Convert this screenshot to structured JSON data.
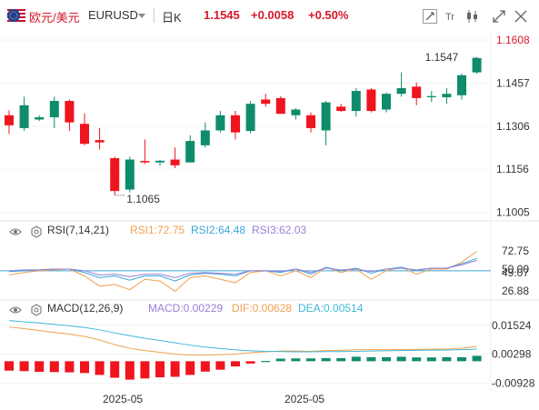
{
  "header": {
    "pair_name": "欧元/美元",
    "pair_code": "EURUSD",
    "period": "日K",
    "price": "1.1545",
    "change": "+0.0058",
    "change_pct": "+0.50%"
  },
  "toolbar": {
    "icons": [
      "crosshair-icon",
      "text-icon",
      "candle-type-icon",
      "collapse-icon",
      "expand-icon"
    ]
  },
  "colors": {
    "up": "#0e8c6b",
    "down": "#f0141e",
    "accent_red": "#d6192c",
    "rsi1": "#f0a050",
    "rsi2": "#3aa6d8",
    "rsi3": "#9a7fd8",
    "macd": "#9a7fd8",
    "dif": "#f0a050",
    "dea": "#3fb8d8"
  },
  "chart_data": [
    {
      "type": "candlestick",
      "y_ticks": [
        "1.1608",
        "1.1457",
        "1.1306",
        "1.1156",
        "1.1005"
      ],
      "ylim": [
        1.0985,
        1.164
      ],
      "annotations": {
        "high": "1.1547",
        "low": "1.1065"
      },
      "candles": [
        {
          "o": 1.1345,
          "h": 1.1362,
          "l": 1.128,
          "c": 1.131
        },
        {
          "o": 1.13,
          "h": 1.141,
          "l": 1.129,
          "c": 1.138
        },
        {
          "o": 1.133,
          "h": 1.1345,
          "l": 1.1325,
          "c": 1.1338
        },
        {
          "o": 1.1338,
          "h": 1.141,
          "l": 1.13,
          "c": 1.1395
        },
        {
          "o": 1.1395,
          "h": 1.14,
          "l": 1.129,
          "c": 1.132
        },
        {
          "o": 1.1315,
          "h": 1.1352,
          "l": 1.124,
          "c": 1.1245
        },
        {
          "o": 1.1258,
          "h": 1.13,
          "l": 1.1225,
          "c": 1.125
        },
        {
          "o": 1.1195,
          "h": 1.12,
          "l": 1.1065,
          "c": 1.108
        },
        {
          "o": 1.1085,
          "h": 1.12,
          "l": 1.1075,
          "c": 1.119
        },
        {
          "o": 1.1185,
          "h": 1.126,
          "l": 1.1175,
          "c": 1.118
        },
        {
          "o": 1.118,
          "h": 1.1188,
          "l": 1.1168,
          "c": 1.1186
        },
        {
          "o": 1.119,
          "h": 1.1232,
          "l": 1.116,
          "c": 1.117
        },
        {
          "o": 1.118,
          "h": 1.1275,
          "l": 1.118,
          "c": 1.1255
        },
        {
          "o": 1.124,
          "h": 1.132,
          "l": 1.1232,
          "c": 1.1292
        },
        {
          "o": 1.1292,
          "h": 1.136,
          "l": 1.1285,
          "c": 1.1345
        },
        {
          "o": 1.1345,
          "h": 1.136,
          "l": 1.126,
          "c": 1.1285
        },
        {
          "o": 1.129,
          "h": 1.1395,
          "l": 1.1282,
          "c": 1.1385
        },
        {
          "o": 1.14,
          "h": 1.142,
          "l": 1.1375,
          "c": 1.1385
        },
        {
          "o": 1.1405,
          "h": 1.1412,
          "l": 1.135,
          "c": 1.135
        },
        {
          "o": 1.1345,
          "h": 1.137,
          "l": 1.133,
          "c": 1.1365
        },
        {
          "o": 1.1345,
          "h": 1.1355,
          "l": 1.1285,
          "c": 1.13
        },
        {
          "o": 1.1292,
          "h": 1.1395,
          "l": 1.124,
          "c": 1.139
        },
        {
          "o": 1.1375,
          "h": 1.1385,
          "l": 1.1357,
          "c": 1.136
        },
        {
          "o": 1.136,
          "h": 1.144,
          "l": 1.134,
          "c": 1.143
        },
        {
          "o": 1.1435,
          "h": 1.144,
          "l": 1.1355,
          "c": 1.136
        },
        {
          "o": 1.1365,
          "h": 1.1425,
          "l": 1.1355,
          "c": 1.142
        },
        {
          "o": 1.142,
          "h": 1.1495,
          "l": 1.141,
          "c": 1.144
        },
        {
          "o": 1.1445,
          "h": 1.146,
          "l": 1.138,
          "c": 1.1405
        },
        {
          "o": 1.1408,
          "h": 1.143,
          "l": 1.1392,
          "c": 1.1412
        },
        {
          "o": 1.1408,
          "h": 1.144,
          "l": 1.1385,
          "c": 1.142
        },
        {
          "o": 1.1415,
          "h": 1.149,
          "l": 1.14,
          "c": 1.1485
        },
        {
          "o": 1.1495,
          "h": 1.1547,
          "l": 1.149,
          "c": 1.1545
        }
      ]
    },
    {
      "type": "line",
      "label": "RSI(7,14,21)",
      "legend": [
        "RSI1:72.75",
        "RSI2:64.48",
        "RSI3:62.03"
      ],
      "y_ticks": [
        "72.75",
        "50.00",
        "49.07",
        "26.88"
      ],
      "ylim": [
        18,
        88
      ],
      "reference_levels": [
        50.0
      ],
      "series": [
        {
          "name": "RSI1",
          "values": [
            45,
            48,
            50,
            51,
            52,
            44,
            32,
            34,
            28,
            40,
            38,
            26,
            42,
            44,
            40,
            36,
            48,
            50,
            44,
            50,
            42,
            54,
            48,
            52,
            40,
            50,
            54,
            46,
            52,
            52,
            60,
            72.75
          ]
        },
        {
          "name": "RSI2",
          "values": [
            49,
            50,
            51,
            52,
            52,
            48,
            42,
            44,
            39,
            44,
            44,
            38,
            45,
            47,
            46,
            44,
            50,
            50,
            48,
            52,
            46,
            54,
            50,
            53,
            47,
            52,
            54,
            50,
            53,
            53,
            58,
            64.48
          ]
        },
        {
          "name": "RSI3",
          "values": [
            50,
            51,
            51,
            52,
            52,
            50,
            45,
            46,
            43,
            46,
            46,
            42,
            47,
            48,
            47,
            46,
            50,
            50,
            49,
            52,
            48,
            53,
            51,
            52,
            49,
            52,
            53,
            51,
            53,
            53,
            57,
            62.03
          ]
        }
      ]
    },
    {
      "type": "bar+line",
      "label": "MACD(12,26,9)",
      "legend": [
        "MACD:0.00229",
        "DIF:0.00628",
        "DEA:0.00514"
      ],
      "y_ticks": [
        "0.01524",
        "0.00298",
        "-0.00928"
      ],
      "ylim": [
        -0.0118,
        0.019
      ],
      "x_ticks": [
        "2025-05",
        "2025-05"
      ],
      "histogram": [
        -0.004,
        -0.0042,
        -0.0045,
        -0.0046,
        -0.0047,
        -0.005,
        -0.0058,
        -0.007,
        -0.0078,
        -0.0073,
        -0.0068,
        -0.0066,
        -0.0058,
        -0.0044,
        -0.0036,
        -0.0022,
        -0.001,
        0.0001,
        0.0011,
        0.0012,
        0.0012,
        0.0013,
        0.0013,
        0.0019,
        0.0017,
        0.0017,
        0.0019,
        0.0016,
        0.0016,
        0.0017,
        0.0017,
        0.00229
      ],
      "series": [
        {
          "name": "DIF",
          "values": [
            0.0145,
            0.0138,
            0.013,
            0.0122,
            0.0115,
            0.0105,
            0.009,
            0.007,
            0.0055,
            0.0045,
            0.0038,
            0.003,
            0.0026,
            0.0026,
            0.0028,
            0.003,
            0.0036,
            0.004,
            0.0043,
            0.0043,
            0.0042,
            0.0045,
            0.0046,
            0.0049,
            0.0049,
            0.0049,
            0.005,
            0.005,
            0.0051,
            0.0052,
            0.0055,
            0.00628
          ]
        },
        {
          "name": "DEA",
          "values": [
            0.0172,
            0.0167,
            0.0162,
            0.0156,
            0.015,
            0.0143,
            0.0133,
            0.012,
            0.0108,
            0.0097,
            0.0088,
            0.0078,
            0.0068,
            0.006,
            0.0054,
            0.0048,
            0.0044,
            0.0042,
            0.0041,
            0.004,
            0.004,
            0.0041,
            0.0041,
            0.0042,
            0.0043,
            0.0044,
            0.0045,
            0.0046,
            0.0047,
            0.0047,
            0.0049,
            0.00514
          ]
        }
      ]
    }
  ]
}
